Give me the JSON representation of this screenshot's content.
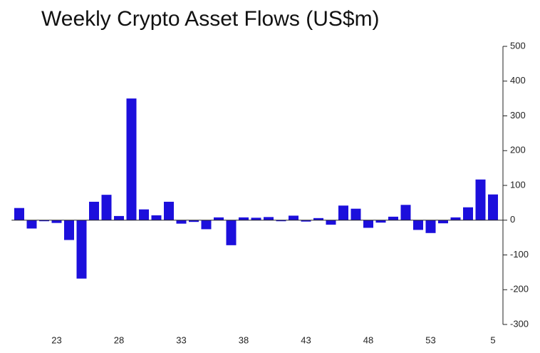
{
  "chart_data": {
    "type": "bar",
    "title": "Weekly Crypto Asset Flows (US$m)",
    "categories": [
      null,
      null,
      null,
      "23",
      null,
      null,
      null,
      null,
      "28",
      null,
      null,
      null,
      null,
      "33",
      null,
      null,
      null,
      null,
      "38",
      null,
      null,
      null,
      null,
      "43",
      null,
      null,
      null,
      null,
      "48",
      null,
      null,
      null,
      null,
      "53",
      null,
      null,
      null,
      null,
      "5"
    ],
    "values": [
      35,
      -24,
      -3,
      -8,
      -57,
      -168,
      53,
      73,
      12,
      350,
      31,
      14,
      53,
      -10,
      -5,
      -26,
      8,
      -72,
      8,
      7,
      9,
      -3,
      13,
      -4,
      6,
      -13,
      42,
      33,
      -22,
      -7,
      10,
      44,
      -28,
      -37,
      -9,
      8,
      37,
      117,
      74
    ],
    "color": "#1c0fdc",
    "ylim": [
      -300,
      500
    ],
    "yticks": [
      500,
      400,
      300,
      200,
      100,
      0,
      -100,
      -200,
      -300
    ],
    "grid": false
  }
}
